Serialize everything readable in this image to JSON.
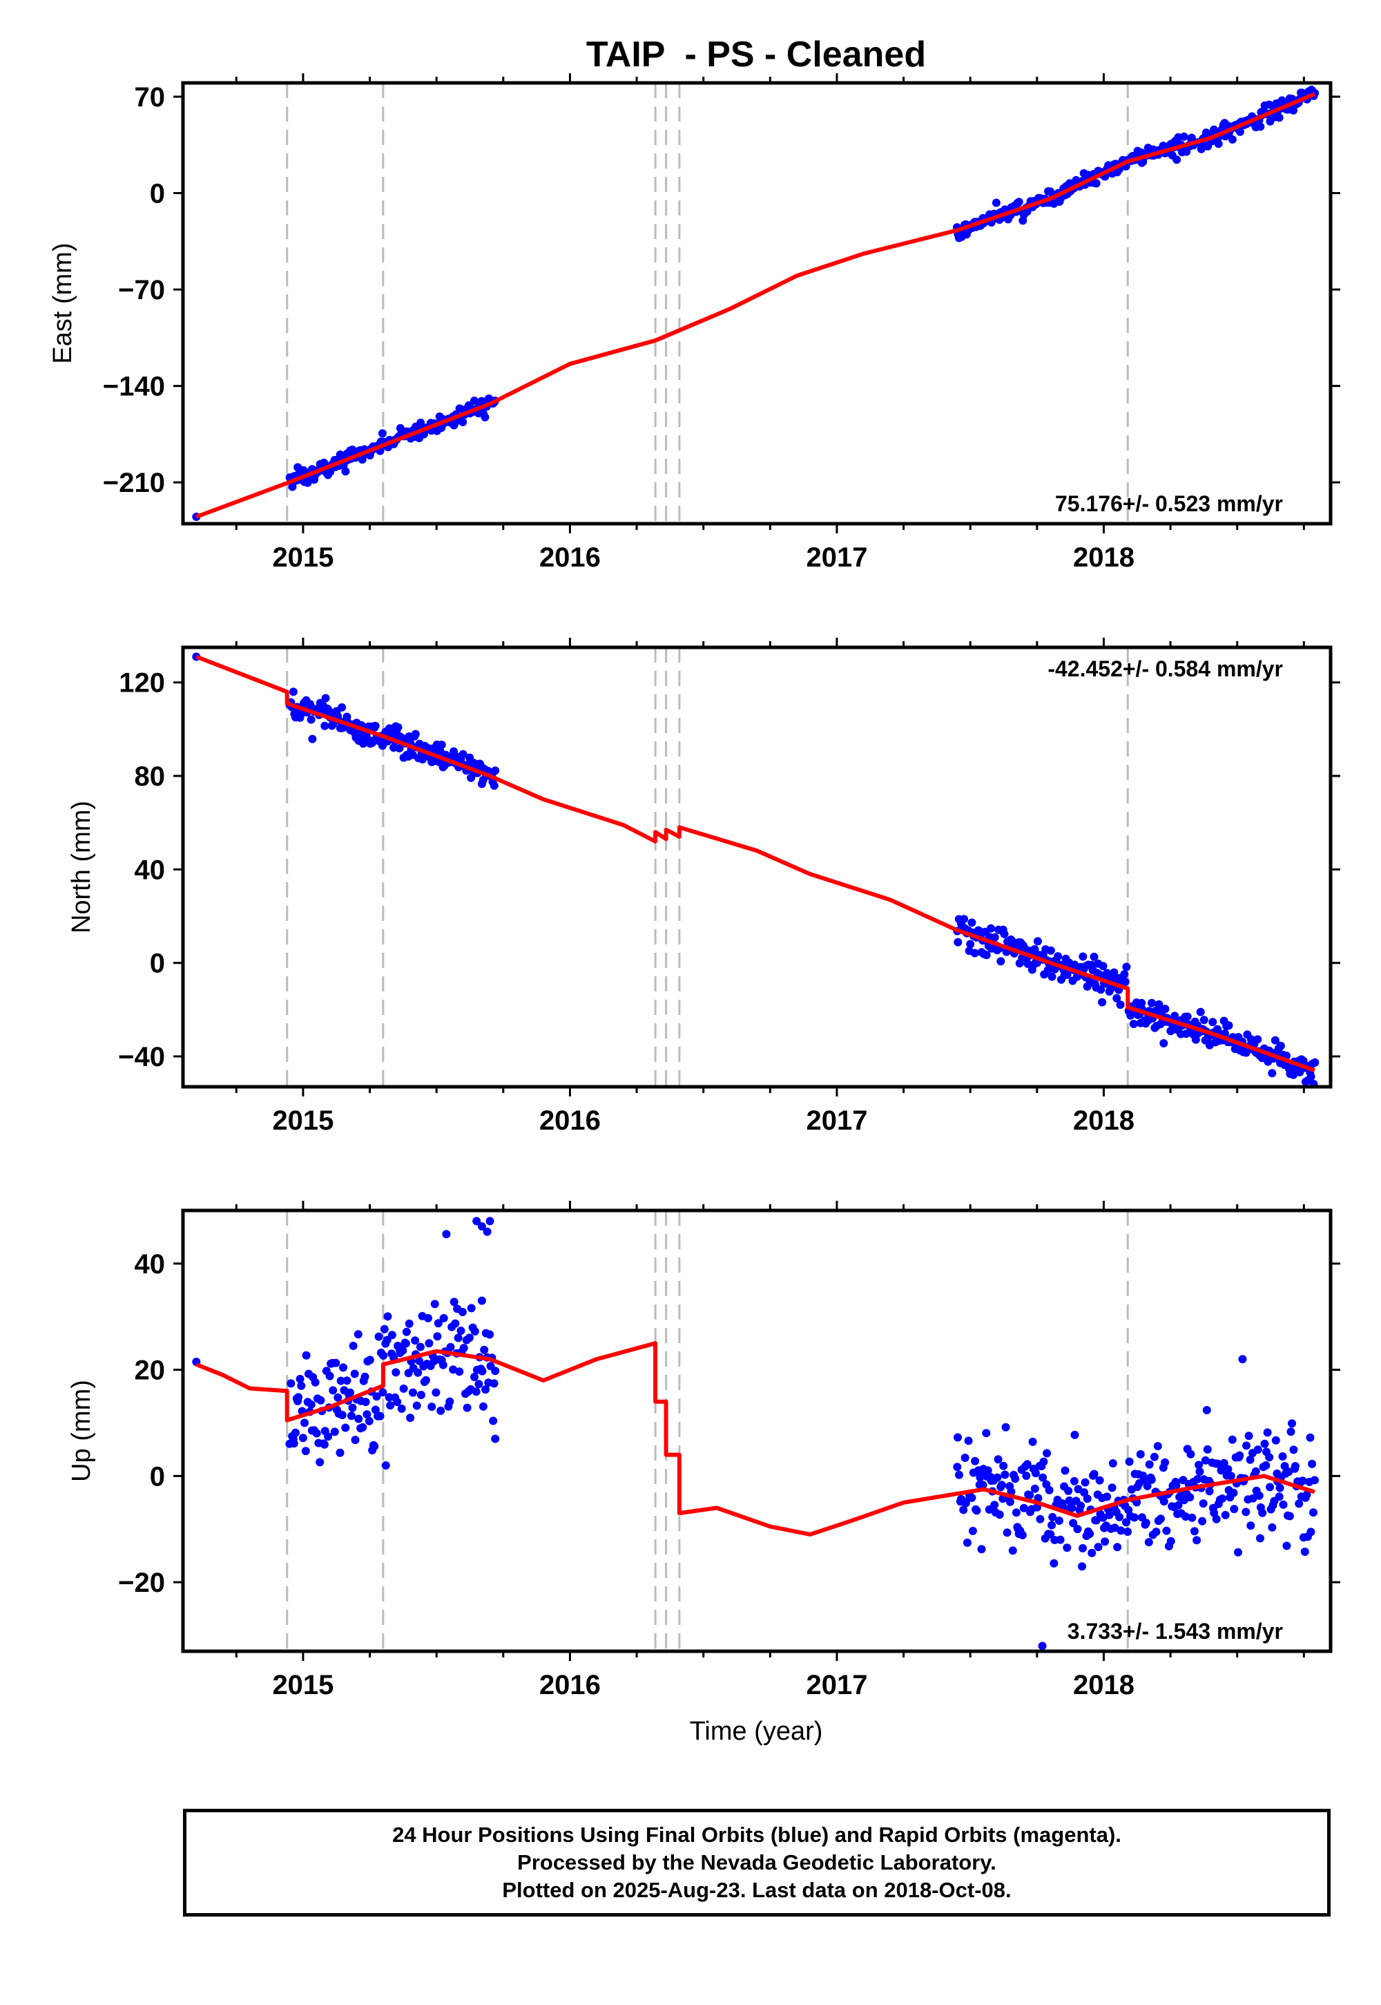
{
  "title": "TAIP  - PS - Cleaned",
  "xlabel": "Time (year)",
  "caption": [
    "24 Hour Positions Using Final Orbits (blue) and Rapid Orbits (magenta).",
    "Processed by the Nevada Geodetic Laboratory.",
    "Plotted on 2025-Aug-23. Last data on 2018-Oct-08."
  ],
  "colors": {
    "data": "#0000ff",
    "model": "#ff0000",
    "breaks": "#bbbbbb",
    "frame": "#000000"
  },
  "chart_data": [
    {
      "type": "scatter",
      "panel": "east",
      "ylabel": "East (mm)",
      "xlim": [
        2014.55,
        2018.85
      ],
      "ylim": [
        -240,
        80
      ],
      "xticks": [
        "2015",
        "2016",
        "2017",
        "2018"
      ],
      "yticks": [
        "70",
        "0",
        "-70",
        "-140",
        "-210"
      ],
      "rate_label": "75.176+/- 0.523 mm/yr",
      "rate_position": "bottom-right",
      "breaks": [
        2014.94,
        2015.3,
        2016.32,
        2016.36,
        2016.41,
        2018.09
      ],
      "model": [
        [
          2014.6,
          -235
        ],
        [
          2014.94,
          -210.5
        ],
        [
          2015.3,
          -183
        ],
        [
          2015.7,
          -153
        ],
        [
          2016.0,
          -124
        ],
        [
          2016.32,
          -107
        ],
        [
          2016.6,
          -84
        ],
        [
          2016.85,
          -60
        ],
        [
          2017.1,
          -44
        ],
        [
          2017.45,
          -27
        ],
        [
          2017.8,
          -4
        ],
        [
          2018.09,
          23
        ],
        [
          2018.4,
          40
        ],
        [
          2018.79,
          72
        ]
      ],
      "data_segments": [
        {
          "x0": 2014.95,
          "x1": 2015.72,
          "y0": -206,
          "y1": -148,
          "scatter": 3
        },
        {
          "x0": 2017.45,
          "x1": 2018.79,
          "y0": -27,
          "y1": 71,
          "scatter": 3
        }
      ],
      "outliers": [
        [
          2014.6,
          -235
        ]
      ]
    },
    {
      "type": "scatter",
      "panel": "north",
      "ylabel": "North (mm)",
      "xlim": [
        2014.55,
        2018.85
      ],
      "ylim": [
        -53,
        135
      ],
      "xticks": [
        "2015",
        "2016",
        "2017",
        "2018"
      ],
      "yticks": [
        "120",
        "80",
        "40",
        "0",
        "-40"
      ],
      "rate_label": "-42.452+/- 0.584 mm/yr",
      "rate_position": "top-right",
      "breaks": [
        2014.94,
        2015.3,
        2016.32,
        2016.36,
        2016.41,
        2018.09
      ],
      "model": [
        [
          2014.6,
          131
        ],
        [
          2014.94,
          116
        ],
        [
          2014.94,
          111
        ],
        [
          2015.3,
          97
        ],
        [
          2015.7,
          80
        ],
        [
          2015.9,
          70
        ],
        [
          2016.2,
          59
        ],
        [
          2016.32,
          52
        ],
        [
          2016.32,
          56
        ],
        [
          2016.36,
          53
        ],
        [
          2016.36,
          57
        ],
        [
          2016.41,
          54
        ],
        [
          2016.41,
          58
        ],
        [
          2016.7,
          48
        ],
        [
          2016.9,
          38
        ],
        [
          2017.2,
          27
        ],
        [
          2017.45,
          14
        ],
        [
          2017.8,
          0
        ],
        [
          2018.09,
          -11
        ],
        [
          2018.09,
          -19
        ],
        [
          2018.4,
          -30
        ],
        [
          2018.79,
          -46
        ]
      ],
      "data_segments": [
        {
          "x0": 2014.95,
          "x1": 2015.72,
          "y0": 109,
          "y1": 79,
          "scatter": 3
        },
        {
          "x0": 2017.45,
          "x1": 2018.085,
          "y0": 14,
          "y1": -11,
          "scatter": 4
        },
        {
          "x0": 2018.095,
          "x1": 2018.79,
          "y0": -19,
          "y1": -46,
          "scatter": 3
        }
      ],
      "outliers": [
        [
          2014.6,
          131
        ]
      ]
    },
    {
      "type": "scatter",
      "panel": "up",
      "ylabel": "Up (mm)",
      "xlim": [
        2014.55,
        2018.85
      ],
      "ylim": [
        -33,
        50
      ],
      "xticks": [
        "2015",
        "2016",
        "2017",
        "2018"
      ],
      "yticks": [
        "40",
        "20",
        "0",
        "-20"
      ],
      "rate_label": "3.733+/- 1.543 mm/yr",
      "rate_position": "bottom-right",
      "breaks": [
        2014.94,
        2015.3,
        2016.32,
        2016.36,
        2016.41,
        2018.09
      ],
      "model": [
        [
          2014.6,
          21
        ],
        [
          2014.7,
          19
        ],
        [
          2014.8,
          16.5
        ],
        [
          2014.94,
          16
        ],
        [
          2014.94,
          10.5
        ],
        [
          2015.1,
          13
        ],
        [
          2015.3,
          17
        ],
        [
          2015.3,
          21
        ],
        [
          2015.5,
          23.5
        ],
        [
          2015.7,
          22
        ],
        [
          2015.9,
          18
        ],
        [
          2016.1,
          22
        ],
        [
          2016.32,
          25
        ],
        [
          2016.32,
          14
        ],
        [
          2016.36,
          14
        ],
        [
          2016.36,
          4
        ],
        [
          2016.41,
          4
        ],
        [
          2016.41,
          -7
        ],
        [
          2016.55,
          -6
        ],
        [
          2016.75,
          -9.5
        ],
        [
          2016.9,
          -11
        ],
        [
          2017.05,
          -8.5
        ],
        [
          2017.25,
          -5
        ],
        [
          2017.55,
          -2.5
        ],
        [
          2017.75,
          -5
        ],
        [
          2017.9,
          -7.5
        ],
        [
          2018.09,
          -4.5
        ],
        [
          2018.3,
          -2.5
        ],
        [
          2018.6,
          0
        ],
        [
          2018.79,
          -3
        ]
      ],
      "data_segments": [
        {
          "x0": 2014.95,
          "x1": 2015.72,
          "y0": 12,
          "y1": 20,
          "scatter": 6
        },
        {
          "x0": 2017.45,
          "x1": 2018.79,
          "y0": -3,
          "y1": -1,
          "scatter": 5
        }
      ],
      "outliers": [
        [
          2014.6,
          21.5
        ],
        [
          2015.65,
          48
        ],
        [
          2015.67,
          47
        ],
        [
          2015.69,
          46
        ],
        [
          2015.7,
          48
        ],
        [
          2015.67,
          33
        ],
        [
          2015.72,
          7
        ],
        [
          2015.31,
          2
        ],
        [
          2017.77,
          -32
        ],
        [
          2018.52,
          22
        ]
      ]
    }
  ]
}
